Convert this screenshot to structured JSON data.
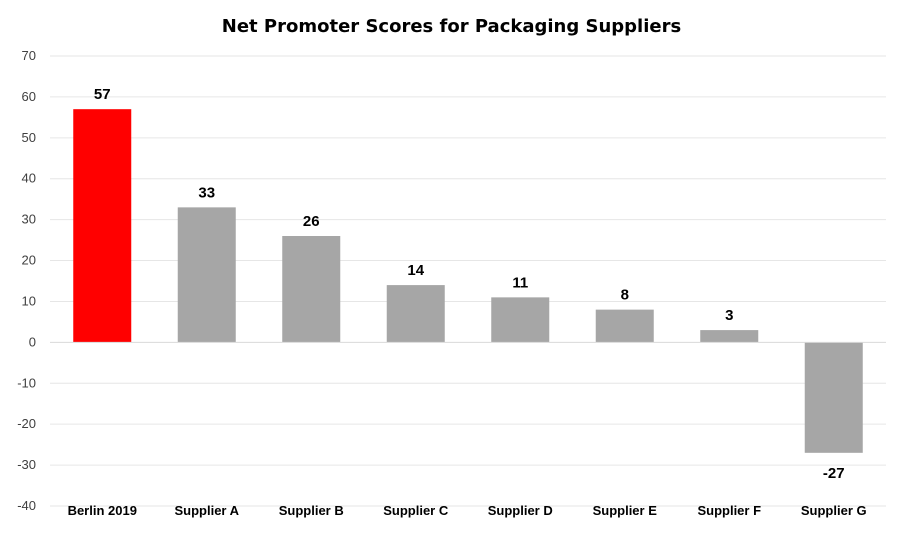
{
  "chart_data": {
    "type": "bar",
    "title": "Net Promoter Scores for Packaging Suppliers",
    "categories": [
      "Berlin 2019",
      "Supplier A",
      "Supplier B",
      "Supplier C",
      "Supplier D",
      "Supplier E",
      "Supplier F",
      "Supplier G"
    ],
    "values": [
      57,
      33,
      26,
      14,
      11,
      8,
      3,
      -27
    ],
    "highlight_category": "Berlin 2019",
    "ylim": [
      -40,
      70
    ],
    "yticks": [
      70,
      60,
      50,
      40,
      30,
      20,
      10,
      0,
      -10,
      -20,
      -30,
      -40
    ],
    "xlabel": "",
    "ylabel": "",
    "grid": true,
    "legend": "none",
    "colors": {
      "highlight_bar": "#ff0000",
      "bar": "#a6a6a6",
      "gridline": "#e6e6e6",
      "zero_line": "#d9d9d9"
    }
  }
}
